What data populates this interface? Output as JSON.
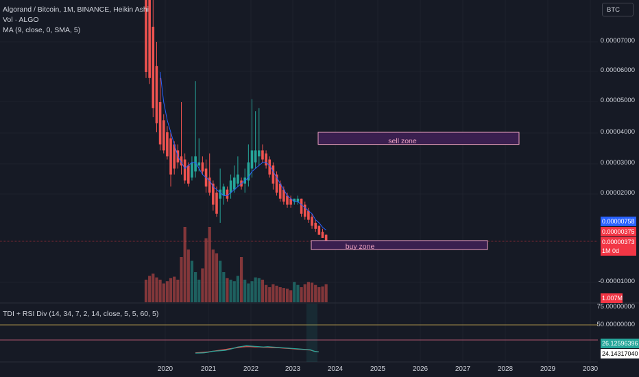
{
  "legend": {
    "title": "Algorand / Bitcoin, 1M, BINANCE, Heikin Ashi",
    "vol": "Vol · ALGO",
    "ma": "MA (9, close, 0, SMA, 5)"
  },
  "currency_button": "BTC",
  "price_axis": [
    "0.00007000",
    "0.00006000",
    "0.00005000",
    "0.00004000",
    "0.00003000",
    "0.00002000",
    "-0.00001000"
  ],
  "price_tags": {
    "ma_value": "0.00000758",
    "last_price": "0.00000375",
    "close_price": "0.00000373",
    "countdown": "1M 0d",
    "volume": "1.007M"
  },
  "zones": {
    "sell": "sell zone",
    "buy": "buy zone"
  },
  "tdi": {
    "label": "TDI + RSI Div (14, 34, 7, 2, 14, close, 5, 5, 60, 5)",
    "axis": [
      "75.00000000",
      "50.00000000"
    ],
    "value_1": "26.12596396",
    "value_2": "24.14317040"
  },
  "x_axis": [
    "2020",
    "2021",
    "2022",
    "2023",
    "2024",
    "2025",
    "2026",
    "2027",
    "2028",
    "2029",
    "2030"
  ],
  "colors": {
    "background": "#161a25",
    "up": "#26a69a",
    "down": "#ef5350",
    "ma": "#2962ff",
    "zone_fill": "#3a1f4f",
    "zone_border": "#f0a4c4",
    "ma_tag": "#2962ff",
    "price_tag": "#f23645"
  },
  "chart_data": {
    "type": "candlestick",
    "series_name": "Algorand / Bitcoin",
    "interval": "1M",
    "style": "Heikin Ashi",
    "ohlc": [
      {
        "o": 0.00011,
        "h": 0.00012,
        "l": 5.8e-05,
        "c": 6e-05
      },
      {
        "o": 9e-05,
        "h": 0.0001,
        "l": 5.6e-05,
        "c": 5.8e-05
      },
      {
        "o": 7.5e-05,
        "h": 9e-05,
        "l": 4.5e-05,
        "c": 4.8e-05
      },
      {
        "o": 6.2e-05,
        "h": 7e-05,
        "l": 4e-05,
        "c": 4.3e-05
      },
      {
        "o": 5e-05,
        "h": 5.8e-05,
        "l": 3.4e-05,
        "c": 3.6e-05
      },
      {
        "o": 4.4e-05,
        "h": 4.6e-05,
        "l": 3.3e-05,
        "c": 3.4e-05
      },
      {
        "o": 4e-05,
        "h": 4.2e-05,
        "l": 3.1e-05,
        "c": 3.2e-05
      },
      {
        "o": 3.8e-05,
        "h": 4e-05,
        "l": 2.2e-05,
        "c": 2.6e-05
      },
      {
        "o": 3.6e-05,
        "h": 3.7e-05,
        "l": 2.6e-05,
        "c": 2.8e-05
      },
      {
        "o": 3.4e-05,
        "h": 3.6e-05,
        "l": 2.8e-05,
        "c": 3e-05
      },
      {
        "o": 3.2e-05,
        "h": 5e-05,
        "l": 2.6e-05,
        "c": 2.9e-05
      },
      {
        "o": 3.1e-05,
        "h": 3.3e-05,
        "l": 2.3e-05,
        "c": 2.4e-05
      },
      {
        "o": 2.9e-05,
        "h": 3e-05,
        "l": 2.2e-05,
        "c": 2.3e-05
      },
      {
        "o": 2.5e-05,
        "h": 3.2e-05,
        "l": 2.4e-05,
        "c": 3e-05
      },
      {
        "o": 2.7e-05,
        "h": 5.7e-05,
        "l": 2.5e-05,
        "c": 3.2e-05
      },
      {
        "o": 2.9e-05,
        "h": 3.8e-05,
        "l": 2.7e-05,
        "c": 3e-05
      },
      {
        "o": 3e-05,
        "h": 3.2e-05,
        "l": 2.6e-05,
        "c": 2.7e-05
      },
      {
        "o": 2.8e-05,
        "h": 3.1e-05,
        "l": 2e-05,
        "c": 2.2e-05
      },
      {
        "o": 2.5e-05,
        "h": 3.3e-05,
        "l": 1.9e-05,
        "c": 2e-05
      },
      {
        "o": 2.3e-05,
        "h": 2.4e-05,
        "l": 1.4e-05,
        "c": 1.6e-05
      },
      {
        "o": 2e-05,
        "h": 2.2e-05,
        "l": 1.2e-05,
        "c": 1.3e-05
      },
      {
        "o": 1.8e-05,
        "h": 2.8e-05,
        "l": 1e-05,
        "c": 2.1e-05
      },
      {
        "o": 1.9e-05,
        "h": 2.3e-05,
        "l": 1.6e-05,
        "c": 2.2e-05
      },
      {
        "o": 2.1e-05,
        "h": 2.2e-05,
        "l": 1.7e-05,
        "c": 1.8e-05
      },
      {
        "o": 2e-05,
        "h": 2.6e-05,
        "l": 1.8e-05,
        "c": 2.4e-05
      },
      {
        "o": 2.1e-05,
        "h": 2.9e-05,
        "l": 2e-05,
        "c": 2.5e-05
      },
      {
        "o": 2.3e-05,
        "h": 3.2e-05,
        "l": 2.2e-05,
        "c": 2.6e-05
      },
      {
        "o": 2.4e-05,
        "h": 2.5e-05,
        "l": 2.1e-05,
        "c": 2.2e-05
      },
      {
        "o": 2.3e-05,
        "h": 2.8e-05,
        "l": 2e-05,
        "c": 2.5e-05
      },
      {
        "o": 2.4e-05,
        "h": 3.6e-05,
        "l": 2.2e-05,
        "c": 3e-05
      },
      {
        "o": 2.8e-05,
        "h": 5.1e-05,
        "l": 2.5e-05,
        "c": 3.4e-05
      },
      {
        "o": 3e-05,
        "h": 4.7e-05,
        "l": 2.8e-05,
        "c": 3.4e-05
      },
      {
        "o": 3.2e-05,
        "h": 4.8e-05,
        "l": 2.9e-05,
        "c": 3.4e-05
      },
      {
        "o": 3.4e-05,
        "h": 3.6e-05,
        "l": 3e-05,
        "c": 3.1e-05
      },
      {
        "o": 3.3e-05,
        "h": 3.4e-05,
        "l": 2.8e-05,
        "c": 2.9e-05
      },
      {
        "o": 3.1e-05,
        "h": 3.2e-05,
        "l": 2.5e-05,
        "c": 2.6e-05
      },
      {
        "o": 2.9e-05,
        "h": 3e-05,
        "l": 2.1e-05,
        "c": 2.3e-05
      },
      {
        "o": 2.6e-05,
        "h": 2.7e-05,
        "l": 1.9e-05,
        "c": 2e-05
      },
      {
        "o": 2.3e-05,
        "h": 2.4e-05,
        "l": 1.7e-05,
        "c": 1.8e-05
      },
      {
        "o": 2.1e-05,
        "h": 2.2e-05,
        "l": 1.6e-05,
        "c": 1.7e-05
      },
      {
        "o": 1.9e-05,
        "h": 2e-05,
        "l": 1.5e-05,
        "c": 1.6e-05
      },
      {
        "o": 1.8e-05,
        "h": 1.9e-05,
        "l": 1.5e-05,
        "c": 1.6e-05
      },
      {
        "o": 1.7e-05,
        "h": 1.8e-05,
        "l": 1.6e-05,
        "c": 1.8e-05
      },
      {
        "o": 1.7e-05,
        "h": 1.9e-05,
        "l": 1.6e-05,
        "c": 1.8e-05
      },
      {
        "o": 1.8e-05,
        "h": 1.8e-05,
        "l": 1.2e-05,
        "c": 1.3e-05
      },
      {
        "o": 1.6e-05,
        "h": 1.7e-05,
        "l": 1.1e-05,
        "c": 1.2e-05
      },
      {
        "o": 1.4e-05,
        "h": 1.5e-05,
        "l": 1e-05,
        "c": 1.1e-05
      },
      {
        "o": 1.2e-05,
        "h": 1.3e-05,
        "l": 8e-06,
        "c": 9e-06
      },
      {
        "o": 1e-05,
        "h": 1.1e-05,
        "l": 7e-06,
        "c": 8e-06
      },
      {
        "o": 9e-06,
        "h": 9e-06,
        "l": 6e-06,
        "c": 6e-06
      },
      {
        "o": 7e-06,
        "h": 8e-06,
        "l": 5e-06,
        "c": 5e-06
      },
      {
        "o": 6e-06,
        "h": 6.2e-06,
        "l": 3.6e-06,
        "c": 3.73e-06
      }
    ],
    "ma": [
      null,
      null,
      null,
      null,
      6e-05,
      5e-05,
      4.4e-05,
      4e-05,
      3.6e-05,
      3.2e-05,
      3e-05,
      2.8e-05,
      2.9e-05,
      3e-05,
      3e-05,
      2.8e-05,
      2.6e-05,
      2.5e-05,
      2.4e-05,
      2.2e-05,
      2.1e-05,
      2e-05,
      1.9e-05,
      1.9e-05,
      2e-05,
      2.1e-05,
      2.2e-05,
      2.3e-05,
      2.4e-05,
      2.5e-05,
      2.7e-05,
      2.8e-05,
      2.9e-05,
      3e-05,
      3e-05,
      2.9e-05,
      2.7e-05,
      2.5e-05,
      2.3e-05,
      2.1e-05,
      1.9e-05,
      1.8e-05,
      1.7e-05,
      1.7e-05,
      1.6e-05,
      1.5e-05,
      1.4e-05,
      1.3e-05,
      1.1e-05,
      1e-05,
      8.5e-06,
      7.58e-06
    ],
    "volume": [
      0.3,
      0.35,
      0.38,
      0.33,
      0.3,
      0.25,
      0.28,
      0.32,
      0.34,
      0.3,
      0.6,
      1.0,
      0.7,
      0.55,
      0.4,
      0.3,
      0.45,
      0.85,
      1.0,
      0.7,
      0.65,
      0.55,
      0.4,
      0.32,
      0.3,
      0.28,
      0.35,
      0.6,
      0.3,
      0.25,
      0.28,
      0.33,
      0.32,
      0.3,
      0.23,
      0.2,
      0.24,
      0.22,
      0.2,
      0.19,
      0.18,
      0.16,
      0.27,
      0.23,
      0.2,
      0.24,
      0.27,
      0.26,
      0.23,
      0.2,
      0.21,
      0.24
    ],
    "tdi_lines": {
      "price_line": [
        24,
        24.5,
        25,
        27,
        30,
        31,
        32,
        33,
        36,
        40,
        44,
        46,
        48,
        47,
        46,
        45,
        44,
        45,
        44,
        43,
        42,
        41,
        40,
        39,
        38,
        37,
        36,
        35,
        30,
        28
      ],
      "signal_line": [
        25,
        26,
        27,
        28,
        30,
        32,
        34,
        36,
        38,
        40,
        42,
        44,
        45,
        45,
        44,
        44,
        43,
        43,
        42,
        42,
        41,
        40,
        39,
        38,
        37,
        36,
        35,
        34,
        30,
        28
      ]
    },
    "sell_zone": {
      "from": 3.6e-05,
      "to": 4e-05
    },
    "buy_zone": {
      "from": 7e-07,
      "to": 3.3e-06
    },
    "x_range": [
      "2019-06",
      "2030"
    ]
  }
}
